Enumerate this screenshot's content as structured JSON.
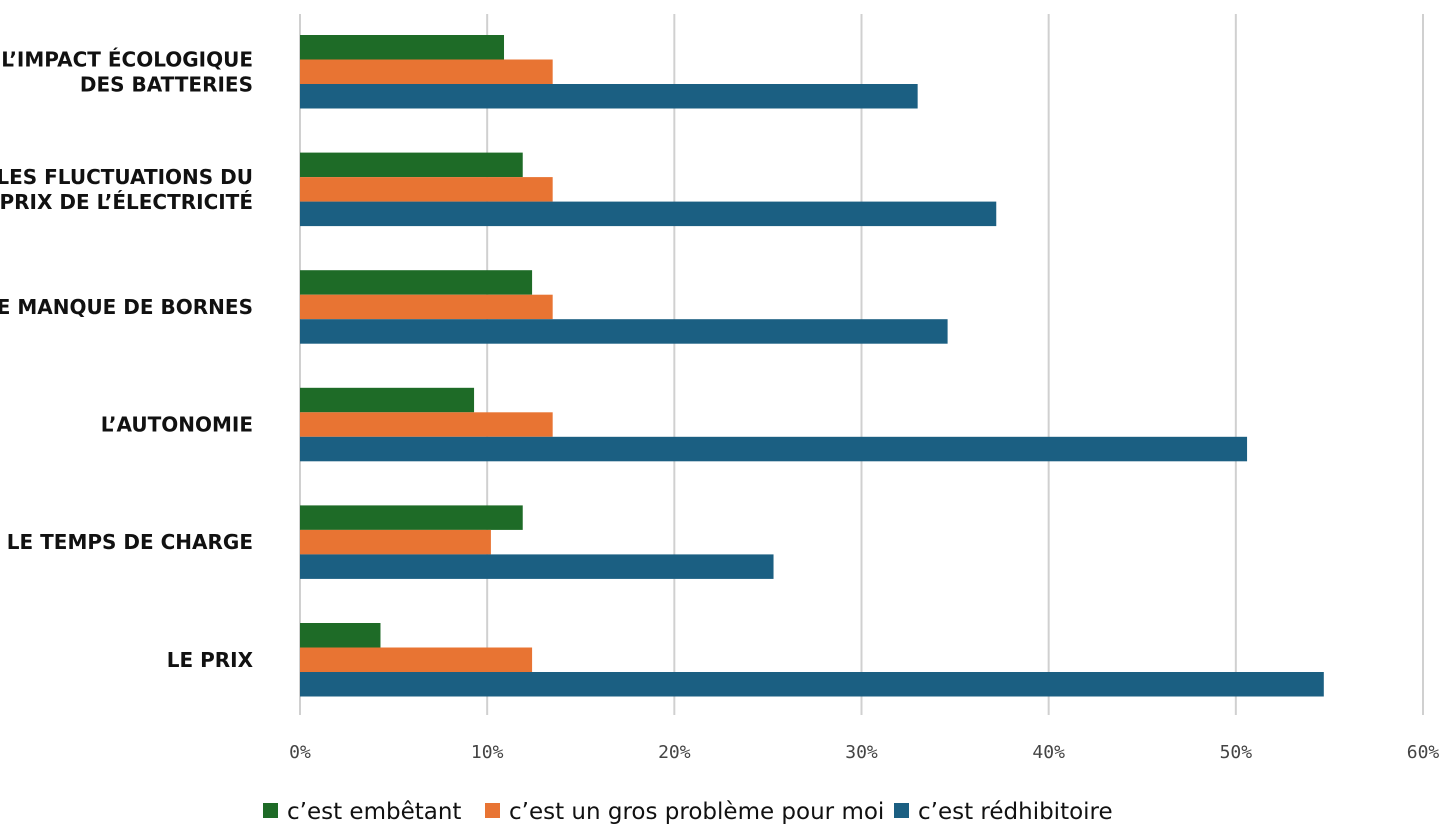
{
  "chart_data": {
    "type": "bar",
    "orientation": "horizontal",
    "categories": [
      [
        "L’IMPACT ÉCOLOGIQUE",
        "DES BATTERIES"
      ],
      [
        "LES FLUCTUATIONS DU",
        "PRIX DE L’ÉLECTRICITÉ"
      ],
      [
        "LE MANQUE DE BORNES"
      ],
      [
        "L’AUTONOMIE"
      ],
      [
        "LE TEMPS DE CHARGE"
      ],
      [
        "LE PRIX"
      ]
    ],
    "series": [
      {
        "name": "c’est embêtant",
        "color": "#1e6b27",
        "values": [
          10.9,
          11.9,
          12.4,
          9.3,
          11.9,
          4.3
        ]
      },
      {
        "name": "c’est un gros problème pour moi",
        "color": "#e87433",
        "values": [
          13.5,
          13.5,
          13.5,
          13.5,
          10.2,
          12.4
        ]
      },
      {
        "name": "c’est rédhibitoire",
        "color": "#1b5f82",
        "values": [
          33.0,
          37.2,
          34.6,
          50.6,
          25.3,
          54.7
        ]
      }
    ],
    "xlim": [
      0,
      60
    ],
    "xticks": [
      "0%",
      "10%",
      "20%",
      "30%",
      "40%",
      "50%",
      "60%"
    ],
    "xtick_values": [
      0,
      10,
      20,
      30,
      40,
      50,
      60
    ],
    "grid": true,
    "legend_position": "bottom"
  }
}
